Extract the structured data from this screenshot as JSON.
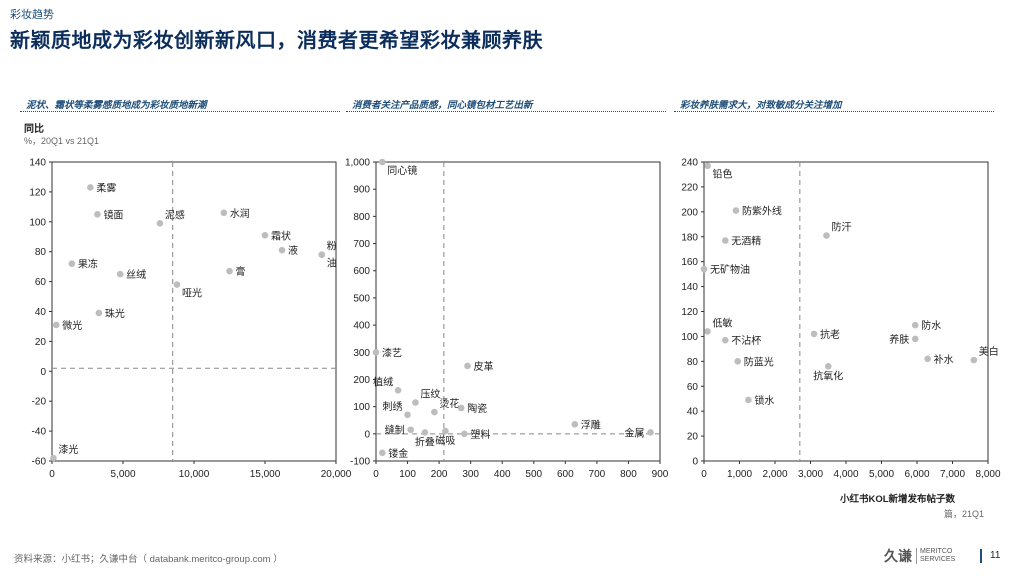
{
  "header": {
    "section_tag": "彩妆趋势",
    "title": "新颖质地成为彩妆创新新风口，消费者更希望彩妆兼顾养肤"
  },
  "panels": [
    {
      "heading": "泥状、霜状等柔雾感质地成为彩妆质地新潮"
    },
    {
      "heading": "消费者关注产品质感，同心镜包材工艺出新"
    },
    {
      "heading": "彩妆养肤需求大，对致敏成分关注增加"
    }
  ],
  "y_axis": {
    "label": "同比",
    "unit": "%，20Q1 vs 21Q1"
  },
  "x_axis": {
    "label": "小红书KOL新增发布帖子数",
    "unit": "篇，21Q1"
  },
  "footer": {
    "source": "资料来源：小红书；久谦中台（ databank.meritco-group.com ）",
    "logo_cn": "久谦",
    "logo_en_1": "MERITCO",
    "logo_en_2": "SERVICES",
    "page": "11"
  },
  "chart_data": [
    {
      "type": "scatter",
      "xlim": [
        0,
        20000
      ],
      "ylim": [
        -60,
        140
      ],
      "xticks": [
        0,
        5000,
        10000,
        15000,
        20000
      ],
      "xtick_labels": [
        "0",
        "5,000",
        "10,000",
        "15,000",
        "20,000"
      ],
      "yticks": [
        -60,
        -40,
        -20,
        0,
        20,
        40,
        60,
        80,
        100,
        120,
        140
      ],
      "ytick_labels": [
        "-60",
        "-40",
        "-20",
        "0",
        "20",
        "40",
        "60",
        "80",
        "100",
        "120",
        "140"
      ],
      "ref_x": 8500,
      "ref_y": 2,
      "points": [
        {
          "label": "柔雾",
          "x": 2700,
          "y": 123,
          "pos": "r"
        },
        {
          "label": "镜面",
          "x": 3200,
          "y": 105,
          "pos": "r"
        },
        {
          "label": "泥感",
          "x": 7600,
          "y": 99,
          "pos": "tr"
        },
        {
          "label": "水润",
          "x": 12100,
          "y": 106,
          "pos": "r"
        },
        {
          "label": "霜状",
          "x": 15000,
          "y": 91,
          "pos": "r"
        },
        {
          "label": "液",
          "x": 16200,
          "y": 81,
          "pos": "r"
        },
        {
          "label": "粉",
          "x": 19000,
          "y": 78,
          "pos": "tr"
        },
        {
          "label": "油",
          "x": 19000,
          "y": 78,
          "pos": "br"
        },
        {
          "label": "果冻",
          "x": 1400,
          "y": 72,
          "pos": "r"
        },
        {
          "label": "丝绒",
          "x": 4800,
          "y": 65,
          "pos": "r"
        },
        {
          "label": "膏",
          "x": 12500,
          "y": 67,
          "pos": "r"
        },
        {
          "label": "哑光",
          "x": 8800,
          "y": 58,
          "pos": "br"
        },
        {
          "label": "珠光",
          "x": 3300,
          "y": 39,
          "pos": "r"
        },
        {
          "label": "微光",
          "x": 300,
          "y": 31,
          "pos": "r"
        },
        {
          "label": "漆光",
          "x": 100,
          "y": -58,
          "pos": "tr"
        }
      ]
    },
    {
      "type": "scatter",
      "xlim": [
        0,
        900
      ],
      "ylim": [
        -100,
        1000
      ],
      "xticks": [
        0,
        100,
        200,
        300,
        400,
        500,
        600,
        700,
        800,
        900
      ],
      "xtick_labels": [
        "0",
        "100",
        "200",
        "300",
        "400",
        "500",
        "600",
        "700",
        "800",
        "900"
      ],
      "yticks": [
        -100,
        0,
        100,
        200,
        300,
        400,
        500,
        600,
        700,
        800,
        900,
        1000
      ],
      "ytick_labels": [
        "-100",
        "0",
        "100",
        "200",
        "300",
        "400",
        "500",
        "600",
        "700",
        "800",
        "900",
        "1,000"
      ],
      "ref_x": 215,
      "ref_y": 0,
      "points": [
        {
          "label": "同心镜",
          "x": 20,
          "y": 1000,
          "pos": "br"
        },
        {
          "label": "漆艺",
          "x": 0,
          "y": 300,
          "pos": "r"
        },
        {
          "label": "皮革",
          "x": 290,
          "y": 250,
          "pos": "r"
        },
        {
          "label": "植绒",
          "x": 70,
          "y": 160,
          "pos": "tl"
        },
        {
          "label": "压纹",
          "x": 125,
          "y": 115,
          "pos": "tr"
        },
        {
          "label": "刺绣",
          "x": 100,
          "y": 70,
          "pos": "tl"
        },
        {
          "label": "烫花",
          "x": 185,
          "y": 80,
          "pos": "tr"
        },
        {
          "label": "陶瓷",
          "x": 270,
          "y": 95,
          "pos": "r"
        },
        {
          "label": "浮雕",
          "x": 630,
          "y": 35,
          "pos": "r"
        },
        {
          "label": "缝制",
          "x": 110,
          "y": 15,
          "pos": "l"
        },
        {
          "label": "折叠",
          "x": 155,
          "y": 5,
          "pos": "b"
        },
        {
          "label": "磁吸",
          "x": 220,
          "y": 10,
          "pos": "b"
        },
        {
          "label": "塑料",
          "x": 280,
          "y": 0,
          "pos": "r"
        },
        {
          "label": "金属",
          "x": 870,
          "y": 5,
          "pos": "l"
        },
        {
          "label": "镂金",
          "x": 20,
          "y": -70,
          "pos": "r"
        }
      ]
    },
    {
      "type": "scatter",
      "xlim": [
        0,
        8000
      ],
      "ylim": [
        0,
        240
      ],
      "xticks": [
        0,
        1000,
        2000,
        3000,
        4000,
        5000,
        6000,
        7000,
        8000
      ],
      "xtick_labels": [
        "0",
        "1,000",
        "2,000",
        "3,000",
        "4,000",
        "5,000",
        "6,000",
        "7,000",
        "8,000"
      ],
      "yticks": [
        0,
        20,
        40,
        60,
        80,
        100,
        120,
        140,
        160,
        180,
        200,
        220,
        240
      ],
      "ytick_labels": [
        "0",
        "20",
        "40",
        "60",
        "80",
        "100",
        "120",
        "140",
        "160",
        "180",
        "200",
        "220",
        "240"
      ],
      "ref_x": 2700,
      "points": [
        {
          "label": "铅色",
          "x": 100,
          "y": 237,
          "pos": "br"
        },
        {
          "label": "防紫外线",
          "x": 900,
          "y": 201,
          "pos": "r"
        },
        {
          "label": "无酒精",
          "x": 600,
          "y": 177,
          "pos": "r"
        },
        {
          "label": "防汗",
          "x": 3450,
          "y": 181,
          "pos": "tr"
        },
        {
          "label": "无矿物油",
          "x": 0,
          "y": 154,
          "pos": "r"
        },
        {
          "label": "低敏",
          "x": 100,
          "y": 104,
          "pos": "tr"
        },
        {
          "label": "不沾杯",
          "x": 600,
          "y": 97,
          "pos": "r"
        },
        {
          "label": "抗老",
          "x": 3100,
          "y": 102,
          "pos": "r"
        },
        {
          "label": "防水",
          "x": 5950,
          "y": 109,
          "pos": "r"
        },
        {
          "label": "养肤",
          "x": 5950,
          "y": 98,
          "pos": "l"
        },
        {
          "label": "防蓝光",
          "x": 950,
          "y": 80,
          "pos": "r"
        },
        {
          "label": "抗氧化",
          "x": 3500,
          "y": 76,
          "pos": "b"
        },
        {
          "label": "补水",
          "x": 6300,
          "y": 82,
          "pos": "r"
        },
        {
          "label": "美白",
          "x": 7600,
          "y": 81,
          "pos": "tr"
        },
        {
          "label": "锁水",
          "x": 1250,
          "y": 49,
          "pos": "r"
        }
      ]
    }
  ]
}
